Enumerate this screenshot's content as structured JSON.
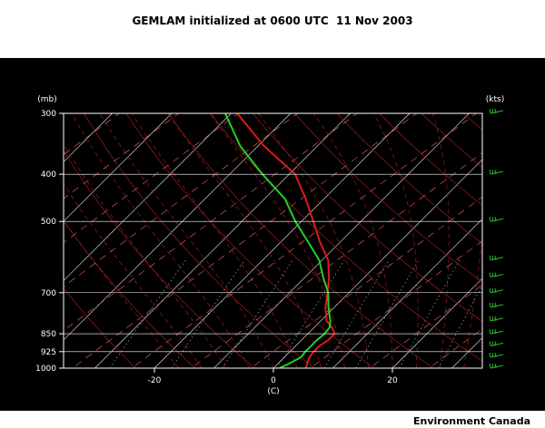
{
  "title": "GEMLAM initialized at 0600 UTC  11 Nov 2003",
  "footer": "Environment Canada",
  "colors": {
    "background": "#000000",
    "temperature": "#e01818",
    "dewpoint": "#22d022",
    "wind_barbs": "#22c022",
    "isotherms": "#ffffff",
    "dry_adiabats": "#8a1a1a",
    "moist_adiabats": "#8a1a1a",
    "mixing_ratio": "#bfbfbf",
    "background_lines": "#ff6666"
  },
  "chart_data": {
    "type": "line",
    "subtype": "skew-T log-P sounding",
    "title": "GEMLAM initialized at 0600 UTC  11 Nov 2003",
    "xlabel": "(C)",
    "ylabel": "(mb)",
    "wind_unit_label": "(kts)",
    "x_ticks": [
      "-20",
      "0",
      "20"
    ],
    "x_tick_values": [
      -20,
      0,
      20
    ],
    "y_ticks": [
      "300",
      "400",
      "500",
      "700",
      "850",
      "925",
      "1000"
    ],
    "y_tick_values": [
      300,
      400,
      500,
      700,
      850,
      925,
      1000
    ],
    "xlim": [
      -40,
      35
    ],
    "ylim": [
      1000,
      300
    ],
    "y_scale": "log",
    "grid": true,
    "series": [
      {
        "name": "",
        "pressure": [
          1000,
          975,
          950,
          925,
          900,
          875,
          850,
          825,
          800,
          750,
          700,
          650,
          600,
          550,
          500,
          450,
          400,
          350,
          300
        ],
        "values": [
          5.5,
          4.8,
          4.2,
          4.0,
          4.0,
          4.5,
          4.5,
          3.0,
          1.0,
          -1.5,
          -3.6,
          -6.0,
          -9.0,
          -13.5,
          -18.0,
          -23.0,
          -29.0,
          -39.0,
          -49.0
        ]
      },
      {
        "name": "",
        "pressure": [
          1000,
          975,
          950,
          925,
          900,
          875,
          850,
          825,
          800,
          750,
          700,
          650,
          600,
          550,
          500,
          450,
          400,
          350,
          300
        ],
        "values": [
          1.0,
          2.0,
          2.8,
          2.6,
          2.6,
          2.6,
          2.8,
          2.6,
          1.6,
          -1.0,
          -3.5,
          -7.0,
          -10.5,
          -15.5,
          -21.0,
          -26.5,
          -34.5,
          -43.0,
          -51.0
        ]
      }
    ],
    "wind_barb_pressures": [
      300,
      400,
      500,
      600,
      650,
      700,
      750,
      800,
      850,
      900,
      950,
      1000
    ]
  }
}
